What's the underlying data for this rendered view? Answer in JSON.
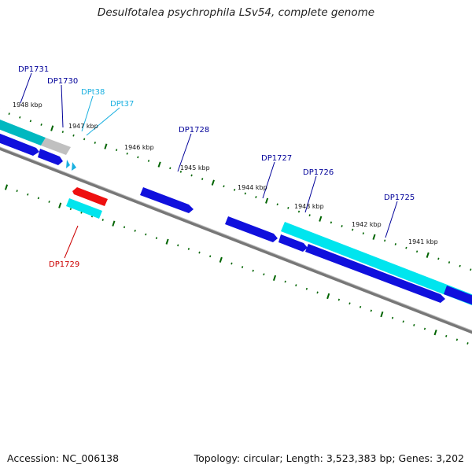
{
  "title": "Desulfotalea psychrophila LSv54, complete genome",
  "accession_line": "Accession: NC_006138",
  "summary_line": "Topology: circular; Length: 3,523,383 bp; Genes: 3,202",
  "colors": {
    "forward_cds": "#1010dd",
    "reverse_cds": "#ee1010",
    "rna": "#00e5ee",
    "pseudo": "#c0c0c0",
    "tick": "#006400",
    "backbone": "#777777",
    "label_cds": "#000099",
    "label_rna": "#1ab0e0",
    "label_reverse": "#cc0000"
  },
  "kbp_labels": [
    "1948 kbp",
    "1947 kbp",
    "1946 kbp",
    "1945 kbp",
    "1944 kbp",
    "1943 kbp",
    "1942 kbp",
    "1941 kbp"
  ],
  "genes": [
    {
      "label": "DP1731",
      "kind": "cds"
    },
    {
      "label": "DP1730",
      "kind": "cds"
    },
    {
      "label": "DPt38",
      "kind": "trna"
    },
    {
      "label": "DPt37",
      "kind": "trna"
    },
    {
      "label": "DP1728",
      "kind": "cds"
    },
    {
      "label": "DP1727",
      "kind": "cds"
    },
    {
      "label": "DP1726",
      "kind": "cds"
    },
    {
      "label": "DP1725",
      "kind": "cds"
    },
    {
      "label": "DP1729",
      "kind": "cds-reverse"
    }
  ]
}
